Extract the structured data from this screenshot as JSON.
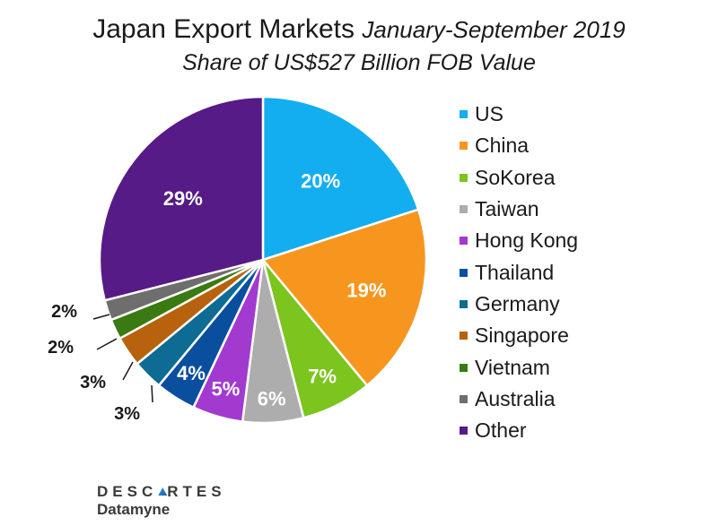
{
  "title": {
    "main": "Japan Export Markets",
    "period": "January-September 2019",
    "subtitle": "Share of US$527 Billion FOB Value"
  },
  "logo": {
    "top_before": "DESC",
    "top_after": "RTES",
    "bottom": "Datamyne"
  },
  "chart_data": {
    "type": "pie",
    "title": "Japan Export Markets January-September 2019",
    "subtitle": "Share of US$527 Billion FOB Value",
    "legend_position": "right",
    "start_angle_deg": 0,
    "direction": "clockwise",
    "slices": [
      {
        "label": "US",
        "value": 20,
        "display": "20%",
        "color": "#12aef0",
        "label_placement": "inside",
        "label_color": "#ffffff"
      },
      {
        "label": "China",
        "value": 19,
        "display": "19%",
        "color": "#f7961e",
        "label_placement": "inside",
        "label_color": "#ffffff"
      },
      {
        "label": "SoKorea",
        "value": 7,
        "display": "7%",
        "color": "#7cc41e",
        "label_placement": "inside",
        "label_color": "#ffffff"
      },
      {
        "label": "Taiwan",
        "value": 6,
        "display": "6%",
        "color": "#adadad",
        "label_placement": "inside",
        "label_color": "#ffffff"
      },
      {
        "label": "Hong Kong",
        "value": 5,
        "display": "5%",
        "color": "#a23ad0",
        "label_placement": "inside",
        "label_color": "#ffffff"
      },
      {
        "label": "Thailand",
        "value": 4,
        "display": "4%",
        "color": "#0a4f9e",
        "label_placement": "inside",
        "label_color": "#ffffff"
      },
      {
        "label": "Germany",
        "value": 3,
        "display": "3%",
        "color": "#0d6b94",
        "label_placement": "outside",
        "label_color": "#1a1a1a"
      },
      {
        "label": "Singapore",
        "value": 3,
        "display": "3%",
        "color": "#b8620d",
        "label_placement": "outside",
        "label_color": "#1a1a1a"
      },
      {
        "label": "Vietnam",
        "value": 2,
        "display": "2%",
        "color": "#3a7a12",
        "label_placement": "outside",
        "label_color": "#1a1a1a"
      },
      {
        "label": "Australia",
        "value": 2,
        "display": "2%",
        "color": "#6e6e6e",
        "label_placement": "outside",
        "label_color": "#1a1a1a"
      },
      {
        "label": "Other",
        "value": 29,
        "display": "29%",
        "color": "#561b86",
        "label_placement": "inside",
        "label_color": "#ffffff"
      }
    ]
  }
}
